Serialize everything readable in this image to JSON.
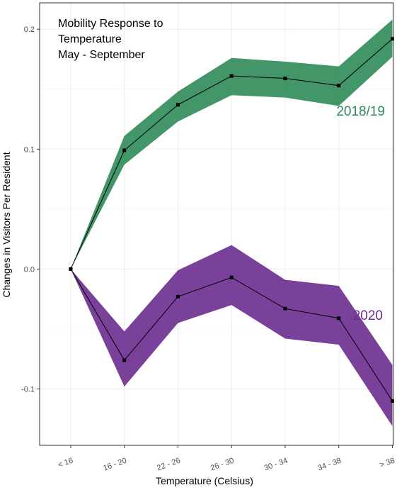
{
  "chart_data": {
    "type": "line",
    "title_lines": [
      "Mobility Response to",
      "Temperature",
      "May - September"
    ],
    "xlabel": "Temperature (Celsius)",
    "ylabel": "Changes in Visitors Per Resident",
    "categories": [
      "< 16",
      "16 - 20",
      "22 - 26",
      "26 - 30",
      "30 - 34",
      "34 - 38",
      "> 38"
    ],
    "ylim": [
      -0.147,
      0.222
    ],
    "yticks": [
      -0.1,
      0.0,
      0.1,
      0.2
    ],
    "ytick_labels": [
      "-0.1",
      "0.0",
      "0.1",
      "0.2"
    ],
    "grid": true,
    "series": [
      {
        "name": "2018/19",
        "color": "#2e8b57",
        "values": [
          0.0,
          0.099,
          0.137,
          0.161,
          0.159,
          0.153,
          0.192
        ],
        "lower": [
          0.0,
          0.087,
          0.123,
          0.145,
          0.143,
          0.136,
          0.177
        ],
        "upper": [
          0.0,
          0.111,
          0.148,
          0.176,
          0.173,
          0.169,
          0.208
        ]
      },
      {
        "name": "2020",
        "color": "#6a2c8e",
        "values": [
          0.0,
          -0.076,
          -0.023,
          -0.007,
          -0.033,
          -0.041,
          -0.11
        ],
        "lower": [
          0.0,
          -0.098,
          -0.045,
          -0.03,
          -0.058,
          -0.063,
          -0.131
        ],
        "upper": [
          0.0,
          -0.052,
          -0.001,
          0.02,
          -0.009,
          -0.014,
          -0.08
        ]
      }
    ]
  }
}
